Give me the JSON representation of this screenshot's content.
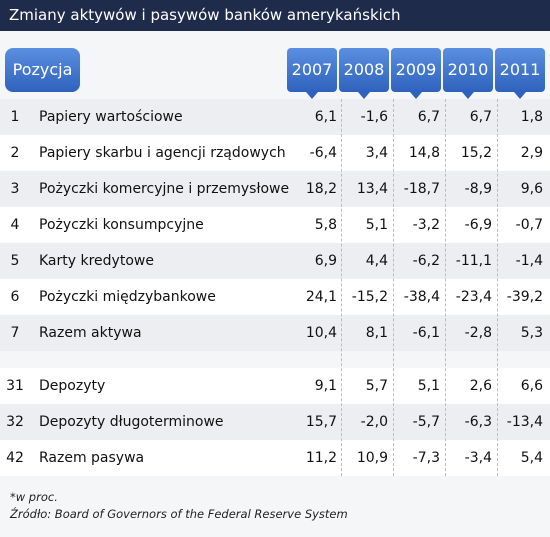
{
  "title": "Zmiany aktywów i pasywów banków amerykańskich",
  "table": {
    "header": [
      "Pozycja",
      "2007",
      "2008",
      "2009",
      "2010",
      "2011"
    ],
    "rows": [
      [
        "1",
        "Papiery wartościowe",
        "6,1",
        "-1,6",
        "6,7",
        "6,7",
        "1,8"
      ],
      [
        "2",
        "Papiery skarbu i agencji rządowych",
        "-6,4",
        "3,4",
        "14,8",
        "15,2",
        "2,9"
      ],
      [
        "3",
        "Pożyczki komercyjne i przemysłowe",
        "18,2",
        "13,4",
        "-18,7",
        "-8,9",
        "9,6"
      ],
      [
        "4",
        "Pożyczki konsumpcyjne",
        "5,8",
        "5,1",
        "-3,2",
        "-6,9",
        "-0,7"
      ],
      [
        "5",
        "Karty kredytowe",
        "6,9",
        "4,4",
        "-6,2",
        "-11,1",
        "-1,4"
      ],
      [
        "6",
        "Pożyczki międzybankowe",
        "24,1",
        "-15,2",
        "-38,4",
        "-23,4",
        "-39,2"
      ],
      [
        "7",
        "Razem aktywa",
        "10,4",
        "8,1",
        "-6,1",
        "-2,8",
        "5,3"
      ],
      [
        "31",
        "Depozyty",
        "9,1",
        "5,7",
        "5,1",
        "2,6",
        "6,6"
      ],
      [
        "32",
        "Depozyty długoterminowe",
        "15,7",
        "-2,0",
        "-5,7",
        "-6,3",
        "-13,4"
      ],
      [
        "42",
        "Razem pasywa",
        "11,2",
        "10,9",
        "-7,3",
        "-3,4",
        "5,4"
      ]
    ]
  },
  "notes": [
    "*w proc.",
    "Źródło: Board of Governors of the Federal Reserve System"
  ]
}
